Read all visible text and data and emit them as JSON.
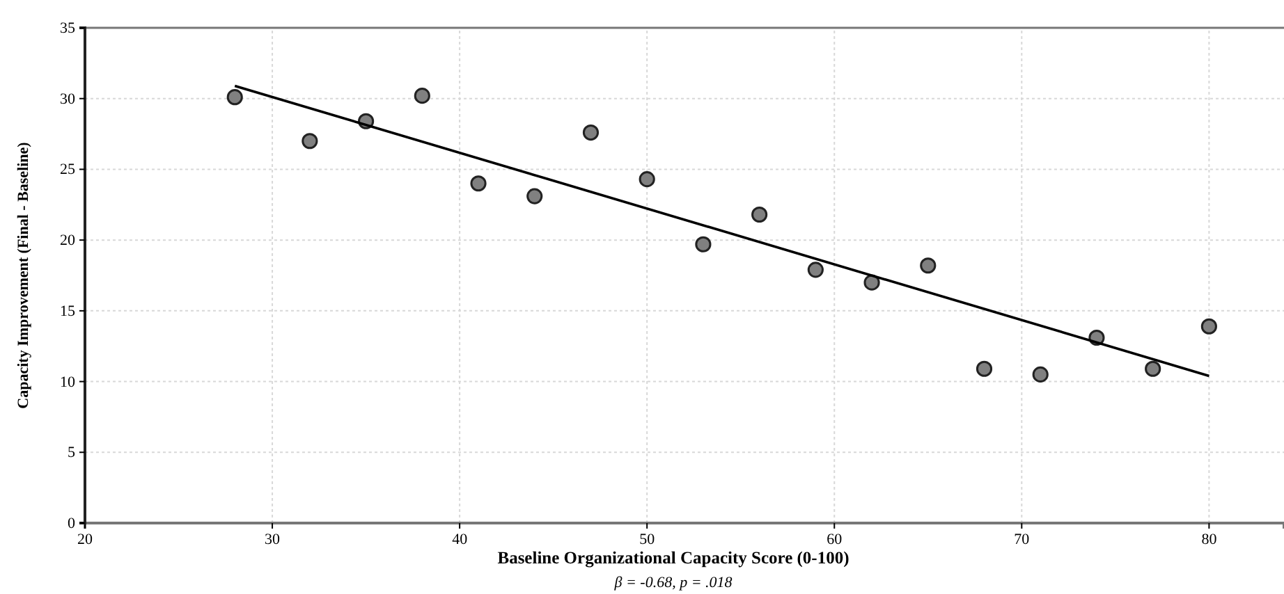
{
  "chart_data": {
    "type": "scatter",
    "xlabel": "Baseline Organizational Capacity Score (0-100)",
    "ylabel": "Capacity Improvement (Final - Baseline)",
    "annotations": [
      "β = -0.68, p = .018"
    ],
    "xlim": [
      20,
      84
    ],
    "xticks": [
      20,
      30,
      40,
      50,
      60,
      70,
      80
    ],
    "ylim": [
      0,
      35
    ],
    "yticks": [
      0,
      5,
      10,
      15,
      20,
      25,
      30,
      35
    ],
    "grid": true,
    "series": [
      {
        "marker": "circle",
        "color": "#808080",
        "x": [
          28,
          32,
          35,
          38,
          41,
          44,
          47,
          50,
          53,
          56,
          59,
          62,
          65,
          68,
          71,
          74,
          77,
          80
        ],
        "values": [
          30.1,
          27,
          28.4,
          30.2,
          24,
          23.1,
          27.6,
          24.3,
          19.7,
          21.8,
          17.9,
          17,
          18.2,
          10.9,
          10.5,
          13.1,
          10.9,
          13.9
        ]
      },
      {
        "type": "line",
        "color": "#000000",
        "x": [
          28,
          80
        ],
        "values": [
          30.9,
          10.4
        ]
      }
    ]
  }
}
